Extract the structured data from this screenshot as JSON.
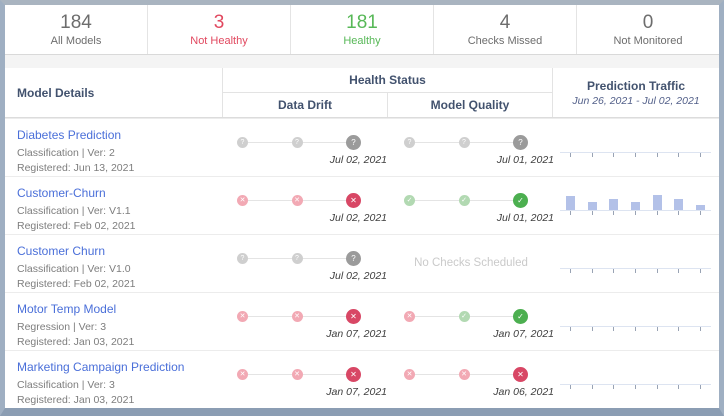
{
  "summary_cards": [
    {
      "value": "184",
      "label": "All Models",
      "tone": "neutral"
    },
    {
      "value": "3",
      "label": "Not Healthy",
      "tone": "red"
    },
    {
      "value": "181",
      "label": "Healthy",
      "tone": "green"
    },
    {
      "value": "4",
      "label": "Checks Missed",
      "tone": "neutral"
    },
    {
      "value": "0",
      "label": "Not Monitored",
      "tone": "neutral"
    }
  ],
  "table": {
    "headers": {
      "model_details": "Model Details",
      "health_status": "Health Status",
      "data_drift": "Data Drift",
      "model_quality": "Model Quality",
      "prediction_traffic": "Prediction Traffic",
      "traffic_range": "Jun 26, 2021 - Jul 02, 2021"
    },
    "rows": [
      {
        "name": "Diabetes Prediction",
        "type_line": "Classification | Ver: 2",
        "registered": "Registered: Jun 13, 2021",
        "data_drift": {
          "dots": [
            "gray",
            "gray",
            "gray-strong"
          ],
          "date": "Jul 02, 2021"
        },
        "model_quality": {
          "dots": [
            "gray",
            "gray",
            "gray-strong"
          ],
          "date": "Jul 01, 2021"
        },
        "traffic": {
          "bars": [
            0,
            0,
            0,
            0,
            0,
            0,
            0
          ]
        }
      },
      {
        "name": "Customer-Churn",
        "type_line": "Classification | Ver: V1.1",
        "registered": "Registered: Feb 02, 2021",
        "data_drift": {
          "dots": [
            "red",
            "red",
            "red-strong"
          ],
          "date": "Jul 02, 2021"
        },
        "model_quality": {
          "dots": [
            "green",
            "green",
            "green-strong"
          ],
          "date": "Jul 01, 2021"
        },
        "traffic": {
          "bars": [
            14,
            8,
            11,
            8,
            15,
            11,
            5
          ]
        }
      },
      {
        "name": "Customer Churn",
        "type_line": "Classification | Ver: V1.0",
        "registered": "Registered: Feb 02, 2021",
        "data_drift": {
          "dots": [
            "gray",
            "gray",
            "gray-strong"
          ],
          "date": "Jul 02, 2021"
        },
        "model_quality": {
          "label": "No Checks Scheduled"
        },
        "traffic": {
          "bars": [
            0,
            0,
            0,
            0,
            0,
            0,
            0
          ]
        }
      },
      {
        "name": "Motor Temp Model",
        "type_line": "Regression | Ver: 3",
        "registered": "Registered: Jan 03, 2021",
        "data_drift": {
          "dots": [
            "red",
            "red",
            "red-strong"
          ],
          "date": "Jan 07, 2021"
        },
        "model_quality": {
          "dots": [
            "red",
            "green",
            "green-strong"
          ],
          "date": "Jan 07, 2021"
        },
        "traffic": {
          "bars": [
            0,
            0,
            0,
            0,
            0,
            0,
            0
          ]
        }
      },
      {
        "name": "Marketing Campaign Prediction",
        "type_line": "Classification | Ver: 3",
        "registered": "Registered: Jan 03, 2021",
        "data_drift": {
          "dots": [
            "red",
            "red",
            "red-strong"
          ],
          "date": "Jan 07, 2021"
        },
        "model_quality": {
          "dots": [
            "red",
            "red",
            "red-strong"
          ],
          "date": "Jan 06, 2021"
        },
        "traffic": {
          "bars": [
            0,
            0,
            0,
            0,
            0,
            0,
            0
          ]
        }
      }
    ]
  },
  "colors": {
    "error": "#d84765",
    "error_light": "#f2a9b4",
    "ok": "#4caf50",
    "ok_light": "#b2d9b2",
    "unknown": "#9b9b9b",
    "unknown_light": "#cfcfcf",
    "traffic_bar": "#b3c1e8",
    "link": "#4a6fd9"
  }
}
